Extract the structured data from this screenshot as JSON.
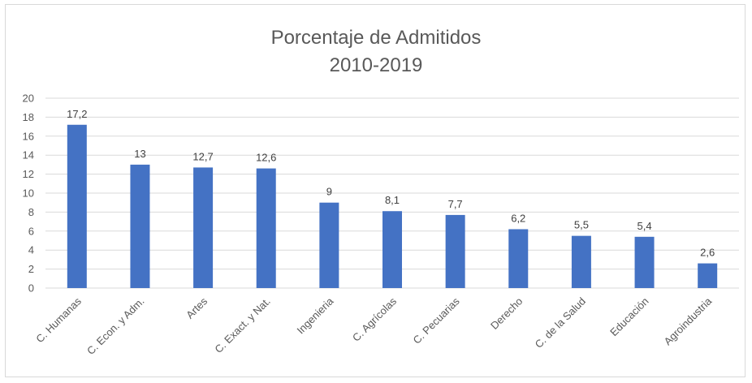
{
  "chart_data": {
    "type": "bar",
    "title": "Porcentaje de Admitidos",
    "subtitle": "2010-2019",
    "xlabel": "",
    "ylabel": "",
    "ylim": [
      0,
      20
    ],
    "y_ticks": [
      0,
      2,
      4,
      6,
      8,
      10,
      12,
      14,
      16,
      18,
      20
    ],
    "grid": true,
    "legend": "none",
    "categories": [
      "C. Humanas",
      "C. Econ. y Adm.",
      "Artes",
      "C. Exact. y Nat.",
      "Ingenieria",
      "C. Agrícolas",
      "C. Pecuarias",
      "Derecho",
      "C. de la Salud",
      "Educación",
      "Agroindustria"
    ],
    "values": [
      17.2,
      13,
      12.7,
      12.6,
      9,
      8.1,
      7.7,
      6.2,
      5.5,
      5.4,
      2.6
    ],
    "data_labels": [
      "17,2",
      "13",
      "12,7",
      "12,6",
      "9",
      "8,1",
      "7,7",
      "6,2",
      "5,5",
      "5,4",
      "2,6"
    ],
    "colors": {
      "bar": "#4472c4",
      "grid": "#d9d9d9",
      "text": "#595959"
    }
  }
}
